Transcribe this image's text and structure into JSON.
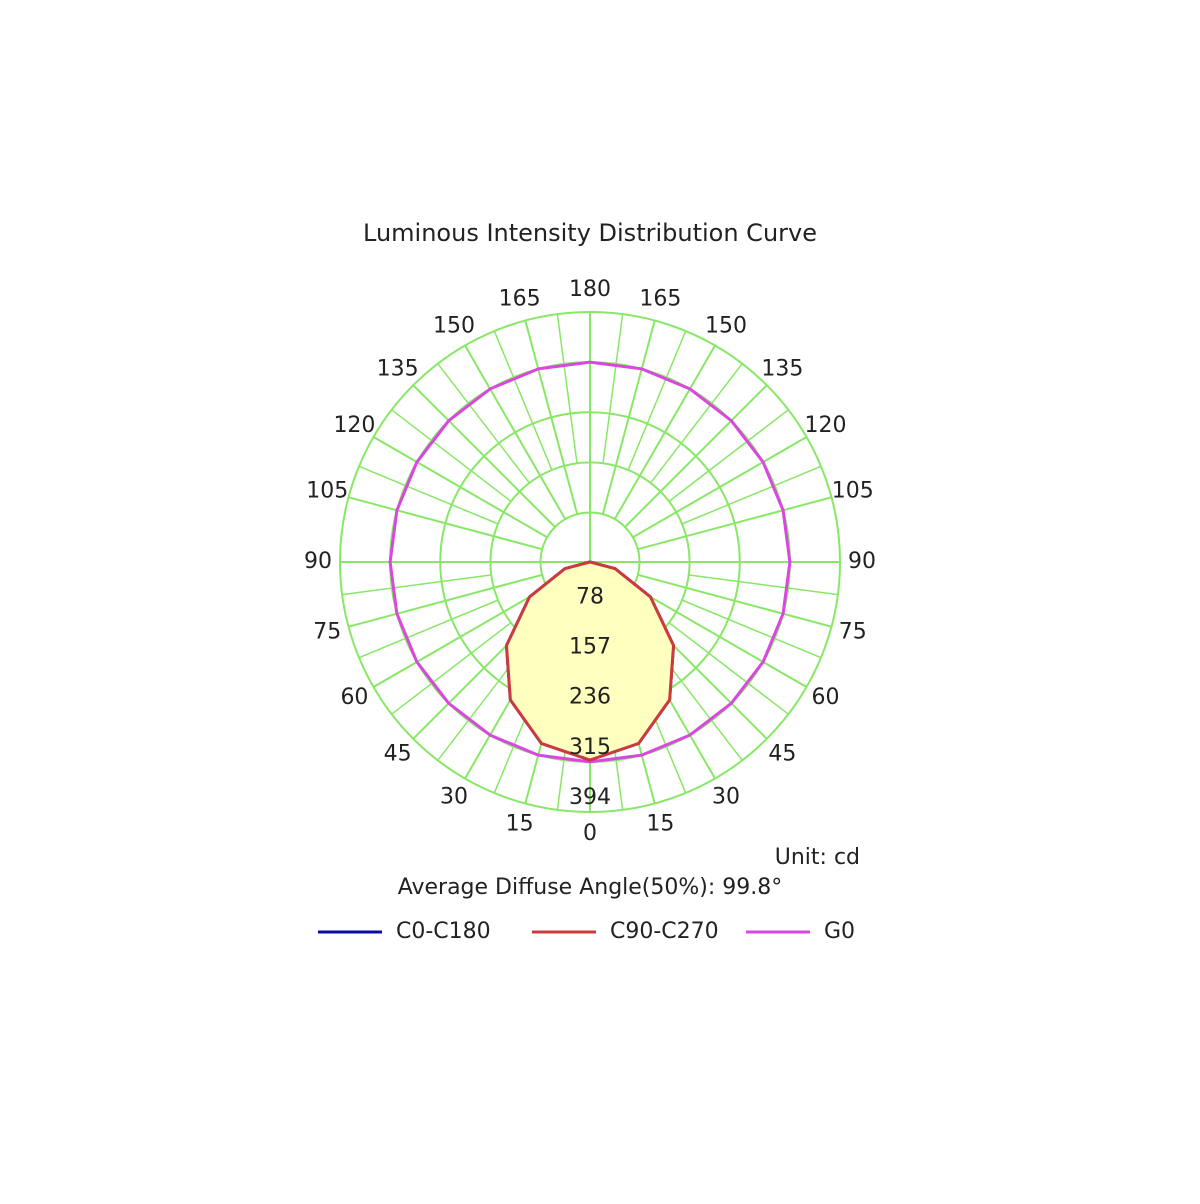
{
  "chart_data": {
    "type": "polar",
    "title": "Luminous Intensity Distribution Curve",
    "unit_label": "Unit: cd",
    "annotation": "Average Diffuse Angle(50%): 99.8°",
    "angles": [
      0,
      15,
      30,
      45,
      60,
      75,
      90,
      105,
      120,
      135,
      150,
      165,
      180
    ],
    "angle_ticks": [
      0,
      15,
      30,
      45,
      60,
      75,
      90,
      105,
      120,
      135,
      150,
      165,
      180
    ],
    "rlim": [
      0,
      394
    ],
    "rticks": [
      78,
      157,
      236,
      315,
      394
    ],
    "grid_color": "#88e866",
    "fill_color": "#ffffc0",
    "series": [
      {
        "name": "C0-C180",
        "color": "#0a0aa8",
        "values": [
          312,
          296,
          251,
          186,
          110,
          41,
          0,
          0,
          0,
          0,
          0,
          0,
          0
        ]
      },
      {
        "name": "C90-C270",
        "color": "#cc3b3b",
        "values": [
          312,
          296,
          251,
          186,
          110,
          41,
          0,
          0,
          0,
          0,
          0,
          0,
          0
        ]
      },
      {
        "name": "G0",
        "color": "#d946e0",
        "values": [
          315,
          315,
          315,
          315,
          315,
          315,
          315,
          315,
          315,
          315,
          315,
          315,
          315
        ]
      }
    ]
  }
}
